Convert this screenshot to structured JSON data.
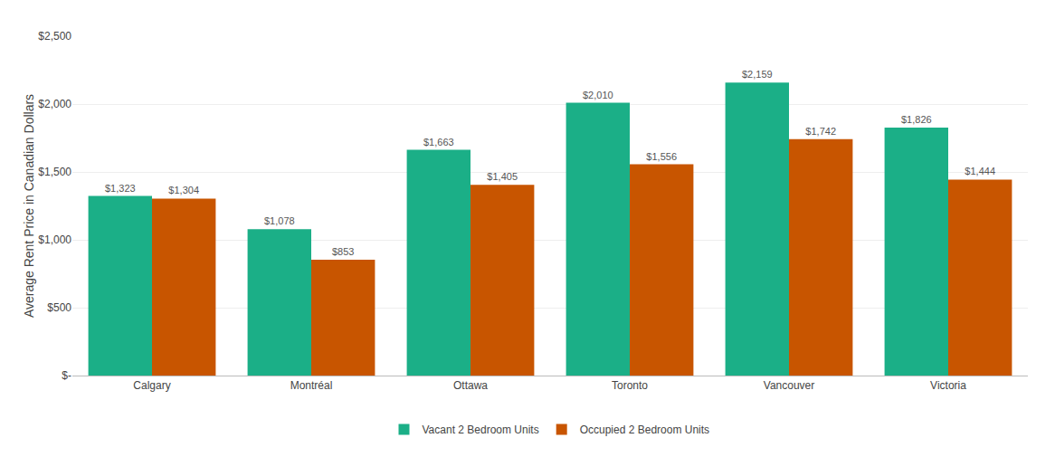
{
  "chart_data": {
    "type": "bar",
    "categories": [
      "Calgary",
      "Montréal",
      "Ottawa",
      "Toronto",
      "Vancouver",
      "Victoria"
    ],
    "ylabel": "Average Rent Price in Canadian Dollars",
    "series": [
      {
        "name": "Vacant 2 Bedroom Units",
        "color": "#1BAF87",
        "values": [
          1323,
          1078,
          1663,
          2010,
          2159,
          1826
        ],
        "value_labels": [
          "$1,323",
          "$1,078",
          "$1,663",
          "$2,010",
          "$2,159",
          "$1,826"
        ]
      },
      {
        "name": "Occupied 2 Bedroom Units",
        "color": "#C85500",
        "values": [
          1304,
          853,
          1405,
          1556,
          1742,
          1444
        ],
        "value_labels": [
          "$1,304",
          "$853",
          "$1,405",
          "$1,556",
          "$1,742",
          "$1,444"
        ]
      }
    ],
    "ylim": [
      0,
      2500
    ],
    "yticks": [
      {
        "value": 0,
        "label": "$-"
      },
      {
        "value": 500,
        "label": "$500"
      },
      {
        "value": 1000,
        "label": "$1,000"
      },
      {
        "value": 1500,
        "label": "$1,500"
      },
      {
        "value": 2000,
        "label": "$2,000"
      },
      {
        "value": 2500,
        "label": "$2,500"
      }
    ],
    "grid": true,
    "legend": "bottom",
    "data_labels": true
  }
}
